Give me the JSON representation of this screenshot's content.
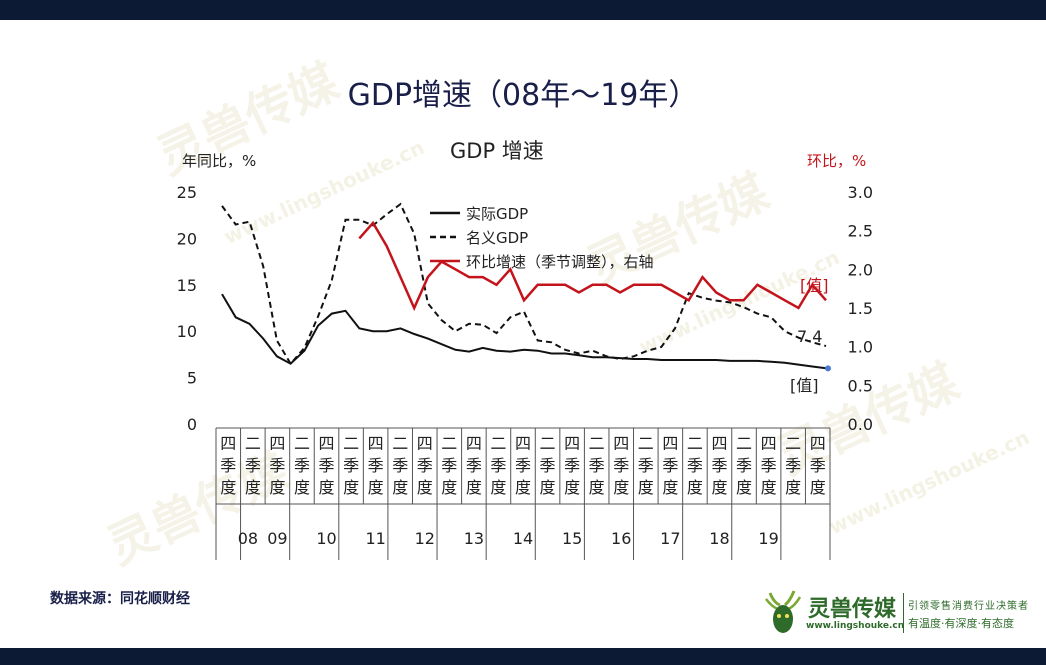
{
  "page_title": "GDP增速（08年～19年）",
  "source": "数据来源：同花顺财经",
  "watermark": {
    "brand": "灵兽传媒",
    "url": "www.lingshouke.cn"
  },
  "logo": {
    "name": "灵兽传媒",
    "url": "www.lingshouke.cn",
    "slogan1": "引领零售消费行业决策者",
    "slogan2": "有温度·有深度·有态度"
  },
  "colors": {
    "real": "#111111",
    "nominal": "#111111",
    "qoq": "#c4141b",
    "title": "#1a1f4a"
  },
  "chart_data": {
    "type": "line",
    "title": "GDP 增速",
    "ylabel_left": "年同比，%",
    "ylabel_right": "环比，%",
    "ylim_left": [
      0,
      25
    ],
    "ylim_right": [
      0.0,
      3.0
    ],
    "left_ticks": [
      "25",
      "20",
      "15",
      "10",
      "5",
      "0"
    ],
    "right_ticks": [
      "3.0",
      "2.5",
      "2.0",
      "1.5",
      "1.0",
      "0.5",
      "0.0"
    ],
    "x_quarter_labels": [
      "四季度",
      "二季度",
      "四季度",
      "二季度",
      "四季度",
      "二季度",
      "四季度",
      "二季度",
      "四季度",
      "二季度",
      "四季度",
      "二季度",
      "四季度",
      "二季度",
      "四季度",
      "二季度",
      "四季度",
      "二季度",
      "四季度",
      "二季度",
      "四季度",
      "二季度",
      "四季度",
      "二季度",
      "四季度"
    ],
    "x_year_labels": [
      "08",
      "09",
      "10",
      "11",
      "12",
      "13",
      "14",
      "15",
      "16",
      "17",
      "18",
      "19"
    ],
    "x_quarters": [
      "2008Q3",
      "2008Q4",
      "2009Q1",
      "2009Q2",
      "2009Q3",
      "2009Q4",
      "2010Q1",
      "2010Q2",
      "2010Q3",
      "2010Q4",
      "2011Q1",
      "2011Q2",
      "2011Q3",
      "2011Q4",
      "2012Q1",
      "2012Q2",
      "2012Q3",
      "2012Q4",
      "2013Q1",
      "2013Q2",
      "2013Q3",
      "2013Q4",
      "2014Q1",
      "2014Q2",
      "2014Q3",
      "2014Q4",
      "2015Q1",
      "2015Q2",
      "2015Q3",
      "2015Q4",
      "2016Q1",
      "2016Q2",
      "2016Q3",
      "2016Q4",
      "2017Q1",
      "2017Q2",
      "2017Q3",
      "2017Q4",
      "2018Q1",
      "2018Q2",
      "2018Q3",
      "2018Q4",
      "2019Q1",
      "2019Q2",
      "2019Q3"
    ],
    "series": [
      {
        "name": "实际GDP",
        "axis": "left",
        "style": "solid",
        "values": [
          14.0,
          11.5,
          10.8,
          9.2,
          7.3,
          6.5,
          7.9,
          10.6,
          11.9,
          12.2,
          10.3,
          10.0,
          10.0,
          10.3,
          9.7,
          9.2,
          8.6,
          8.0,
          7.8,
          8.2,
          7.9,
          7.8,
          8.0,
          7.9,
          7.6,
          7.6,
          7.4,
          7.2,
          7.2,
          7.1,
          7.0,
          7.0,
          6.9,
          6.9,
          6.9,
          6.9,
          6.9,
          6.8,
          6.8,
          6.8,
          6.7,
          6.6,
          6.4,
          6.2,
          6.0
        ]
      },
      {
        "name": "名义GDP",
        "axis": "left",
        "style": "dashed",
        "values": [
          23.5,
          21.5,
          21.8,
          17.0,
          9.0,
          6.5,
          8.2,
          11.6,
          15.5,
          22.0,
          22.0,
          21.4,
          22.6,
          23.7,
          20.5,
          13.0,
          11.2,
          10.0,
          10.8,
          10.7,
          9.8,
          11.5,
          12.1,
          9.0,
          8.8,
          8.0,
          7.6,
          7.9,
          7.3,
          7.0,
          7.3,
          7.9,
          8.3,
          10.3,
          14.1,
          13.6,
          13.3,
          13.1,
          12.6,
          11.9,
          11.5,
          10.0,
          9.3,
          8.8,
          8.4
        ]
      },
      {
        "name": "环比增速（季节调整），右轴",
        "axis": "right",
        "style": "solid",
        "values": [
          null,
          null,
          null,
          null,
          null,
          null,
          null,
          null,
          null,
          null,
          2.4,
          2.6,
          2.3,
          1.9,
          1.5,
          1.9,
          2.1,
          2.0,
          1.9,
          1.9,
          1.8,
          2.0,
          1.6,
          1.8,
          1.8,
          1.8,
          1.7,
          1.8,
          1.8,
          1.7,
          1.8,
          1.8,
          1.8,
          1.7,
          1.6,
          1.9,
          1.7,
          1.6,
          1.6,
          1.8,
          1.7,
          1.6,
          1.5,
          1.8,
          1.6
        ]
      }
    ],
    "annotations": {
      "right_value_label": "[值]",
      "left_value_label": "[值]",
      "value_7_4": "7.4"
    },
    "legend_position": "top-center"
  }
}
